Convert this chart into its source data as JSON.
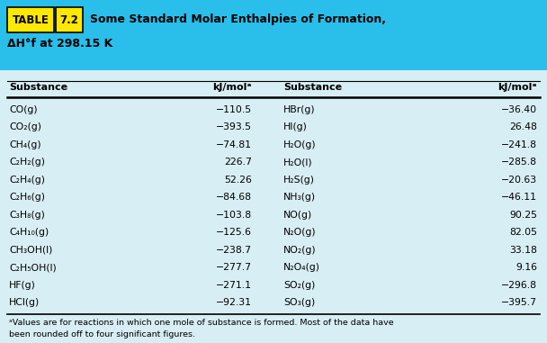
{
  "title_part1": "Some Standard Molar Enthalpies of Formation,",
  "title_part2": "ΔH°f at 298.15 K",
  "header_bg": "#29BFEA",
  "table_bg": "#D8EEF5",
  "col_headers": [
    "Substance",
    "kJ/molᵃ",
    "Substance",
    "kJ/molᵃ"
  ],
  "left_substances": [
    "CO(g)",
    "CO₂(g)",
    "CH₄(g)",
    "C₂H₂(g)",
    "C₂H₄(g)",
    "C₂H₆(g)",
    "C₃H₈(g)",
    "C₄H₁₀(g)",
    "CH₃OH(l)",
    "C₂H₅OH(l)",
    "HF(g)",
    "HCl(g)"
  ],
  "left_values": [
    "−110.5",
    "−393.5",
    "−74.81",
    "226.7",
    "52.26",
    "−84.68",
    "−103.8",
    "−125.6",
    "−238.7",
    "−277.7",
    "−271.1",
    "−92.31"
  ],
  "right_substances": [
    "HBr(g)",
    "HI(g)",
    "H₂O(g)",
    "H₂O(l)",
    "H₂S(g)",
    "NH₃(g)",
    "NO(g)",
    "N₂O(g)",
    "NO₂(g)",
    "N₂O₄(g)",
    "SO₂(g)",
    "SO₃(g)"
  ],
  "right_values": [
    "−36.40",
    "26.48",
    "−241.8",
    "−285.8",
    "−20.63",
    "−46.11",
    "90.25",
    "82.05",
    "33.18",
    "9.16",
    "−296.8",
    "−395.7"
  ],
  "footnote_line1": "ᵃValues are for reactions in which one mole of substance is formed. Most of the data have",
  "footnote_line2": "been rounded off to four significant figures.",
  "table_label_bg": "#FFE800",
  "table_label_text": "TABLE",
  "table_number": "7.2"
}
